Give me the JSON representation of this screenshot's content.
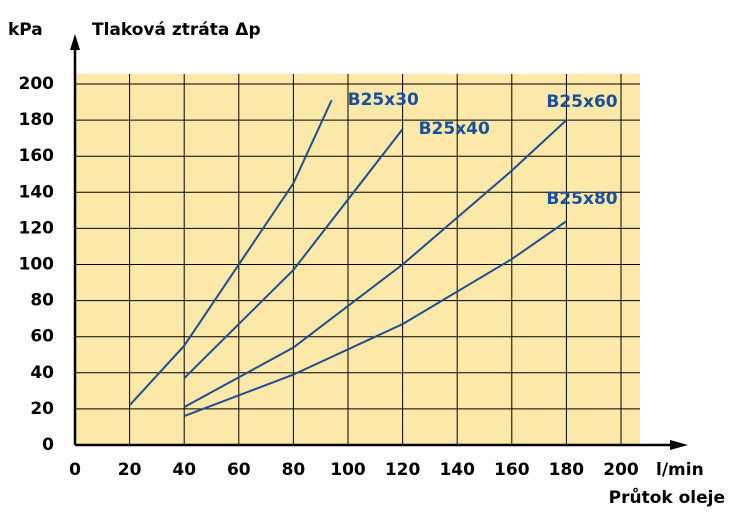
{
  "chart_data": {
    "type": "line",
    "title": "Tlaková ztráta Δp",
    "y_unit": "kPa",
    "x_unit": "l/min",
    "x_label": "Průtok oleje",
    "xlim": [
      0,
      200
    ],
    "xticks": [
      0,
      20,
      40,
      60,
      80,
      100,
      120,
      140,
      160,
      180,
      200
    ],
    "ylim": [
      0,
      200
    ],
    "yticks": [
      0,
      20,
      40,
      60,
      80,
      100,
      120,
      140,
      160,
      180,
      200
    ],
    "grid": true,
    "series": [
      {
        "name": "B25x30",
        "color": "#1f4f8f",
        "x": [
          20,
          40,
          80,
          94
        ],
        "values": [
          22,
          55,
          145,
          191
        ]
      },
      {
        "name": "B25x40",
        "color": "#1f4f8f",
        "x": [
          40,
          80,
          120
        ],
        "values": [
          37,
          97,
          175
        ]
      },
      {
        "name": "B25x60",
        "color": "#1f4f8f",
        "x": [
          40,
          80,
          120,
          160,
          180
        ],
        "values": [
          21,
          54,
          100,
          152,
          180
        ]
      },
      {
        "name": "B25x80",
        "color": "#1f4f8f",
        "x": [
          40,
          80,
          120,
          160,
          180
        ],
        "values": [
          16,
          39,
          67,
          103,
          124
        ]
      }
    ]
  }
}
